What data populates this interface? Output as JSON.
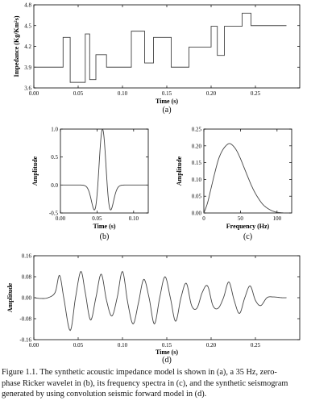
{
  "chart_data": [
    {
      "type": "line",
      "panel_label": "(a)",
      "xlabel": "Time (s)",
      "ylabel": "Impedance (Kg/Km²s)",
      "xlim": [
        0.0,
        0.3
      ],
      "ylim": [
        3.6,
        4.8
      ],
      "xticks": [
        0.0,
        0.05,
        0.1,
        0.15,
        0.2,
        0.25
      ],
      "xtick_labels": [
        "0.00",
        "0.05",
        "0.10",
        "0.15",
        "0.20",
        "0.25"
      ],
      "yticks": [
        3.6,
        3.9,
        4.2,
        4.5,
        4.8
      ],
      "ytick_labels": [
        "3.6",
        "3.9",
        "4.2",
        "4.5",
        "4.8"
      ],
      "grid": false,
      "step": true,
      "x": [
        0.0,
        0.033,
        0.041,
        0.048,
        0.058,
        0.063,
        0.07,
        0.082,
        0.098,
        0.11,
        0.125,
        0.135,
        0.155,
        0.175,
        0.2,
        0.207,
        0.215,
        0.225,
        0.235,
        0.245,
        0.285
      ],
      "y": [
        3.9,
        4.33,
        3.68,
        3.68,
        4.38,
        3.72,
        4.08,
        3.9,
        3.9,
        4.42,
        3.96,
        4.33,
        3.9,
        4.19,
        4.49,
        4.07,
        4.49,
        4.49,
        4.68,
        4.5,
        4.5
      ]
    },
    {
      "type": "line",
      "panel_label": "(b)",
      "xlabel": "Time (s)",
      "ylabel": "Amplitude",
      "xlim": [
        0.0,
        0.12
      ],
      "ylim": [
        -0.5,
        1.0
      ],
      "xticks": [
        0.0,
        0.05,
        0.1
      ],
      "xtick_labels": [
        "0.00",
        "0.05",
        "0.10"
      ],
      "yticks": [
        -0.5,
        0.0,
        0.5,
        1.0
      ],
      "ytick_labels": [
        "-0.5",
        "0.0",
        "0.5",
        "1.0"
      ],
      "grid": false,
      "ricker_peak_hz": 35,
      "ricker_center_s": 0.0575
    },
    {
      "type": "line",
      "panel_label": "(c)",
      "xlabel": "Frequency (Hz)",
      "ylabel": "Amplitude",
      "xlim": [
        0,
        120
      ],
      "ylim": [
        0.0,
        0.25
      ],
      "xticks": [
        0,
        50,
        100
      ],
      "xtick_labels": [
        "0",
        "50",
        "100"
      ],
      "yticks": [
        0.0,
        0.05,
        0.1,
        0.15,
        0.2,
        0.25
      ],
      "ytick_labels": [
        "0.00",
        "0.05",
        "0.10",
        "0.15",
        "0.20",
        "0.25"
      ],
      "grid": false,
      "x": [
        0,
        5,
        10,
        15,
        20,
        25,
        30,
        35,
        40,
        45,
        50,
        55,
        60,
        65,
        70,
        75,
        80,
        85,
        90,
        95,
        100,
        105,
        110
      ],
      "y": [
        0.0,
        0.03,
        0.075,
        0.12,
        0.16,
        0.185,
        0.2,
        0.207,
        0.2,
        0.185,
        0.162,
        0.135,
        0.108,
        0.082,
        0.06,
        0.042,
        0.027,
        0.017,
        0.01,
        0.005,
        0.002,
        0.001,
        0.0
      ]
    },
    {
      "type": "line",
      "panel_label": "(d)",
      "xlabel": "Time (s)",
      "ylabel": "Amplitude",
      "xlim": [
        0.0,
        0.3
      ],
      "ylim": [
        -0.16,
        0.16
      ],
      "xticks": [
        0.0,
        0.05,
        0.1,
        0.15,
        0.2,
        0.25
      ],
      "xtick_labels": [
        "0.00",
        "0.05",
        "0.10",
        "0.15",
        "0.20",
        "0.25"
      ],
      "yticks": [
        -0.16,
        -0.08,
        0.0,
        0.08,
        0.16
      ],
      "ytick_labels": [
        "-0.16",
        "-0.08",
        "0.00",
        "0.08",
        "0.16"
      ],
      "grid": false,
      "x": [
        0.0,
        0.008,
        0.016,
        0.024,
        0.029,
        0.034,
        0.041,
        0.047,
        0.053,
        0.058,
        0.064,
        0.07,
        0.076,
        0.082,
        0.088,
        0.094,
        0.1,
        0.106,
        0.112,
        0.118,
        0.124,
        0.13,
        0.136,
        0.142,
        0.148,
        0.154,
        0.16,
        0.166,
        0.172,
        0.178,
        0.184,
        0.19,
        0.196,
        0.202,
        0.208,
        0.214,
        0.22,
        0.226,
        0.232,
        0.238,
        0.244,
        0.25,
        0.256,
        0.263,
        0.27,
        0.28,
        0.285
      ],
      "y": [
        0.0,
        -0.003,
        0.0,
        0.02,
        0.085,
        -0.005,
        -0.125,
        0.0,
        0.1,
        0.02,
        -0.085,
        0.0,
        0.09,
        -0.01,
        -0.07,
        0.0,
        0.1,
        -0.02,
        -0.1,
        -0.02,
        0.07,
        0.0,
        -0.1,
        0.0,
        0.08,
        0.0,
        -0.09,
        0.0,
        0.055,
        -0.03,
        -0.04,
        0.02,
        0.045,
        -0.03,
        -0.04,
        0.0,
        0.06,
        -0.01,
        -0.06,
        0.0,
        0.045,
        -0.01,
        -0.03,
        0.0,
        0.003,
        0.0,
        0.0
      ]
    }
  ],
  "caption": {
    "lines": [
      "Figure 1.1.  The synthetic acoustic impedance model is shown in (a), a 35 Hz, zero-",
      "phase Ricker wavelet in (b), its frequency  spectra in (c), and the synthetic seismogram",
      "generated by using convolution seismic forward model in (d)."
    ]
  }
}
